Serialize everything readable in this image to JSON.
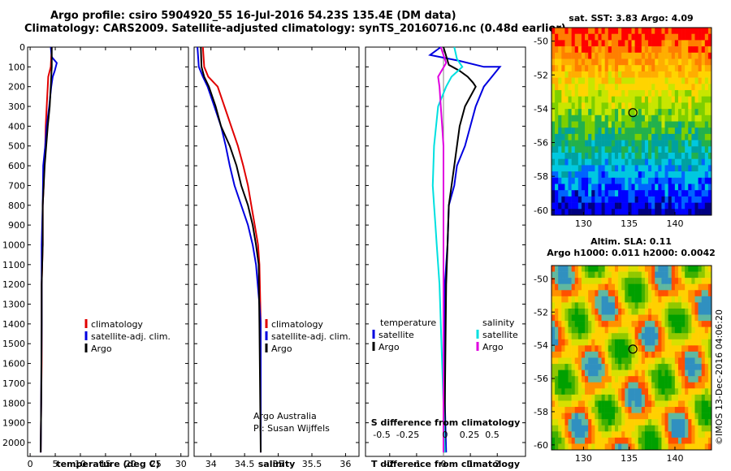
{
  "titles": {
    "line1": "Argo profile: csiro 5904920_55 16-Jul-2016 54.23S 135.4E (DM data)",
    "line2": "Climatology: CARS2009. Satellite-adjusted climatology: synTS_20160716.nc (0.48d earlier)"
  },
  "colors": {
    "climatology": "#e00000",
    "satellite": "#0000e0",
    "argo": "#000000",
    "salinity_sat": "#00e0e0",
    "salinity_argo": "#e000e0"
  },
  "chart_data": [
    {
      "type": "line",
      "id": "temperature",
      "xlabel": "temperature (deg C)",
      "xlim": [
        -0.5,
        31.5
      ],
      "xticks": [
        0,
        5,
        10,
        15,
        20,
        25,
        30
      ],
      "ylim": [
        2070,
        0
      ],
      "yticks": [
        0,
        100,
        200,
        300,
        400,
        500,
        600,
        700,
        800,
        900,
        1000,
        1100,
        1200,
        1300,
        1400,
        1500,
        1600,
        1700,
        1800,
        1900,
        2000
      ],
      "legend": [
        "climatology",
        "satellite-adj. clim.",
        "Argo"
      ],
      "series": [
        {
          "name": "climatology",
          "x": [
            4.3,
            4.1,
            3.6,
            3.5,
            3.3,
            3.1,
            3.0,
            2.8,
            2.7,
            2.5,
            2.5,
            2.3,
            2.3,
            2.3,
            2.2,
            2.1
          ],
          "y": [
            0,
            100,
            150,
            200,
            300,
            400,
            500,
            600,
            700,
            800,
            1000,
            1200,
            1400,
            1600,
            1800,
            2050
          ]
        },
        {
          "name": "satellite-adj. clim.",
          "x": [
            4.1,
            4.3,
            5.3,
            4.9,
            4.5,
            4.2,
            3.8,
            3.3,
            3.0,
            2.6,
            2.5,
            2.3,
            2.3,
            2.2,
            2.1
          ],
          "y": [
            0,
            50,
            80,
            120,
            150,
            200,
            300,
            400,
            500,
            600,
            800,
            1000,
            1400,
            1800,
            2050
          ]
        },
        {
          "name": "Argo",
          "x": [
            4.3,
            4.3,
            4.2,
            4.1,
            3.9,
            3.5,
            3.2,
            2.9,
            2.7,
            2.5,
            2.5,
            2.3,
            2.3,
            2.2,
            2.1
          ],
          "y": [
            0,
            100,
            150,
            200,
            300,
            400,
            500,
            600,
            700,
            800,
            1000,
            1200,
            1400,
            1800,
            2050
          ]
        }
      ]
    },
    {
      "type": "line",
      "id": "salinity",
      "xlabel": "salinity",
      "xlim": [
        33.75,
        36.2
      ],
      "xticks": [
        34,
        34.5,
        35,
        35.5,
        36
      ],
      "ylim": [
        2070,
        0
      ],
      "legend": [
        "climatology",
        "satellite-adj. clim.",
        "Argo"
      ],
      "annotation": [
        "Argo Australia",
        "PI: Susan Wijffels"
      ],
      "series": [
        {
          "name": "climatology",
          "x": [
            33.88,
            33.9,
            33.96,
            34.1,
            34.2,
            34.3,
            34.4,
            34.48,
            34.55,
            34.6,
            34.65,
            34.7,
            34.72,
            34.74,
            34.74
          ],
          "y": [
            0,
            100,
            150,
            200,
            300,
            400,
            500,
            600,
            700,
            800,
            900,
            1000,
            1100,
            1400,
            2050
          ]
        },
        {
          "name": "satellite-adj. clim.",
          "x": [
            33.8,
            33.82,
            33.88,
            33.95,
            34.05,
            34.15,
            34.22,
            34.28,
            34.35,
            34.45,
            34.55,
            34.62,
            34.67,
            34.72,
            34.74,
            34.74
          ],
          "y": [
            0,
            100,
            150,
            200,
            300,
            400,
            500,
            600,
            700,
            800,
            900,
            1000,
            1100,
            1300,
            1400,
            2050
          ]
        },
        {
          "name": "Argo",
          "x": [
            33.85,
            33.86,
            33.9,
            33.97,
            34.07,
            34.15,
            34.28,
            34.38,
            34.45,
            34.55,
            34.62,
            34.67,
            34.71,
            34.72,
            34.74
          ],
          "y": [
            0,
            100,
            150,
            200,
            300,
            400,
            500,
            600,
            700,
            800,
            900,
            1000,
            1100,
            1400,
            2050
          ]
        }
      ]
    },
    {
      "type": "line",
      "id": "differences",
      "xlabel": "T difference from climatology",
      "xlim": [
        -2.9,
        3.05
      ],
      "xticks": [
        -2,
        -1,
        0,
        1,
        2
      ],
      "x2label": "S difference from climatology",
      "x2ticks": [
        "-0.5",
        "-0.25",
        "0",
        "0.25",
        "0.5"
      ],
      "ylim": [
        2070,
        0
      ],
      "legend_left": [
        "temperature",
        "satellite",
        "Argo"
      ],
      "legend_right": [
        "salinity",
        "satellite",
        "Argo"
      ],
      "series": [
        {
          "name": "T satellite",
          "x": [
            -0.1,
            -0.5,
            0.6,
            1.5,
            2.1,
            1.8,
            1.5,
            1.2,
            1.0,
            0.8,
            0.5,
            0.4,
            0.2,
            0.15,
            0.05,
            0.05,
            0.1
          ],
          "y": [
            0,
            40,
            70,
            100,
            100,
            150,
            200,
            300,
            400,
            500,
            600,
            700,
            800,
            1000,
            1200,
            1800,
            2050
          ]
        },
        {
          "name": "T Argo",
          "x": [
            0.0,
            0.2,
            0.6,
            0.9,
            1.1,
            1.2,
            1.0,
            0.8,
            0.6,
            0.5,
            0.4,
            0.2,
            0.15,
            0.1,
            0.05,
            0.05
          ],
          "y": [
            0,
            90,
            120,
            150,
            180,
            200,
            250,
            300,
            400,
            500,
            600,
            800,
            1000,
            1200,
            1800,
            2050
          ]
        },
        {
          "name": "S satellite",
          "x": [
            0.4,
            0.5,
            0.7,
            0.3,
            0.1,
            -0.2,
            -0.35,
            -0.4,
            -0.35,
            -0.3,
            -0.25,
            -0.2,
            -0.15,
            -0.1,
            0.0,
            0.05
          ],
          "y": [
            0,
            60,
            100,
            150,
            200,
            300,
            500,
            700,
            800,
            900,
            1000,
            1100,
            1200,
            1400,
            1800,
            2050
          ]
        },
        {
          "name": "S Argo",
          "x": [
            -0.1,
            0.1,
            -0.2,
            -0.15,
            -0.1,
            -0.05,
            0.0,
            0.0,
            0.0
          ],
          "y": [
            0,
            80,
            150,
            200,
            300,
            400,
            500,
            800,
            2050
          ]
        }
      ]
    },
    {
      "type": "heatmap",
      "id": "sst_map",
      "title": "sat. SST: 3.83 Argo: 4.09",
      "xticks": [
        130,
        135,
        140
      ],
      "yticks": [
        -50,
        -52,
        -54,
        -56,
        -58,
        -60
      ],
      "xlim": [
        126.5,
        144
      ],
      "ylim": [
        -60.3,
        -49.2
      ],
      "marker": {
        "lon": 135.4,
        "lat": -54.23
      }
    },
    {
      "type": "heatmap",
      "id": "sla_map",
      "title": "Altim. SLA: 0.11",
      "subtitle": "Argo h1000: 0.011 h2000: 0.0042",
      "xticks": [
        130,
        135,
        140
      ],
      "yticks": [
        -50,
        -52,
        -54,
        -56,
        -58,
        -60
      ],
      "xlim": [
        126.5,
        144
      ],
      "ylim": [
        -60.3,
        -49.2
      ],
      "marker": {
        "lon": 135.4,
        "lat": -54.23
      }
    }
  ],
  "watermark": "©IMOS 13-Dec-2016 04:06:20"
}
